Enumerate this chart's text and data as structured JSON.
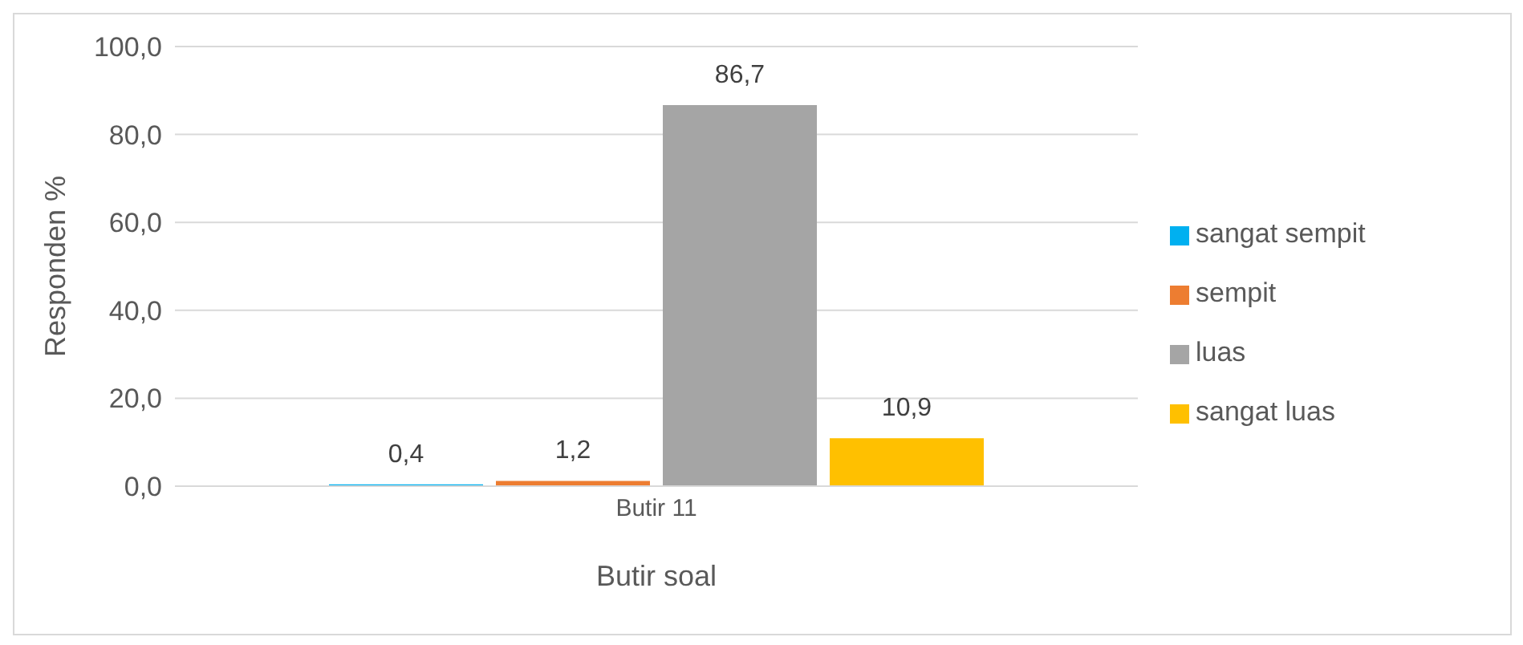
{
  "chart_data": {
    "type": "bar",
    "xlabel": "Butir soal",
    "ylabel": "Responden %",
    "categories": [
      "Butir 11"
    ],
    "series": [
      {
        "name": "sangat sempit",
        "color": "#00b0f0",
        "values": [
          0.4
        ],
        "value_labels": [
          "0,4"
        ]
      },
      {
        "name": "sempit",
        "color": "#ed7d31",
        "values": [
          1.2
        ],
        "value_labels": [
          "1,2"
        ]
      },
      {
        "name": "luas",
        "color": "#a5a5a5",
        "values": [
          86.7
        ],
        "value_labels": [
          "86,7"
        ]
      },
      {
        "name": "sangat luas",
        "color": "#ffc000",
        "values": [
          10.9
        ],
        "value_labels": [
          "10,9"
        ]
      }
    ],
    "ylim": [
      0,
      100
    ],
    "yticks": [
      {
        "value": 0,
        "label": "0,0"
      },
      {
        "value": 20,
        "label": "20,0"
      },
      {
        "value": 40,
        "label": "40,0"
      },
      {
        "value": 60,
        "label": "60,0"
      },
      {
        "value": 80,
        "label": "80,0"
      },
      {
        "value": 100,
        "label": "100,0"
      }
    ],
    "grid": "y",
    "legend": "right"
  }
}
